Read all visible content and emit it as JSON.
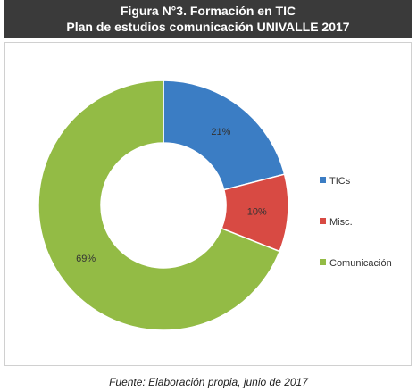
{
  "header": {
    "line1": "Figura N°3. Formación en TIC",
    "line2": "Plan de estudios comunicación UNIVALLE 2017"
  },
  "source": "Fuente: Elaboración propia, junio de 2017",
  "chart_data": {
    "type": "pie",
    "variant": "donut",
    "legend_position": "right",
    "categories": [
      "TICs",
      "Misc.",
      "Comunicación"
    ],
    "values": [
      21,
      10,
      69
    ],
    "labels": [
      "21%",
      "10%",
      "69%"
    ],
    "colors": [
      "#3b7dc4",
      "#d84a43",
      "#93bb45"
    ]
  }
}
